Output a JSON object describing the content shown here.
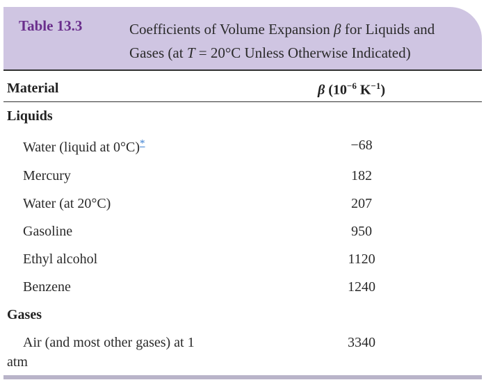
{
  "table": {
    "number": "Table 13.3",
    "caption_line1_pre": "Coefficients of Volume Expansion ",
    "caption_symbol": "β",
    "caption_line1_post": " for Liquids and",
    "caption_line2_pre": "Gases (at ",
    "caption_T": "T",
    "caption_line2_post": " = 20°C Unless Otherwise Indicated)"
  },
  "columns": {
    "material": "Material",
    "beta_symbol": "β",
    "beta_unit_pre": " (10",
    "beta_exp1": "−6",
    "beta_unit_mid": " K",
    "beta_exp2": "−1",
    "beta_unit_post": ")"
  },
  "groups": {
    "liquids": "Liquids",
    "gases": "Gases"
  },
  "rows": [
    {
      "material": "Water (liquid at 0°C)",
      "footnote": "*",
      "beta": "−68"
    },
    {
      "material": "Mercury",
      "beta": "182"
    },
    {
      "material": "Water (at 20°C)",
      "beta": "207"
    },
    {
      "material": "Gasoline",
      "beta": "950"
    },
    {
      "material": "Ethyl alcohol",
      "beta": "1120"
    },
    {
      "material": "Benzene",
      "beta": "1240"
    },
    {
      "material_line1": "Air (and most other gases) at 1",
      "material_line2": "atm",
      "beta": "3340"
    }
  ],
  "colors": {
    "caption_band": "#cfc5e2",
    "table_number": "#6a2e8c",
    "bottom_rule": "#b9b4c9",
    "footnote_link": "#3b7fd1"
  }
}
